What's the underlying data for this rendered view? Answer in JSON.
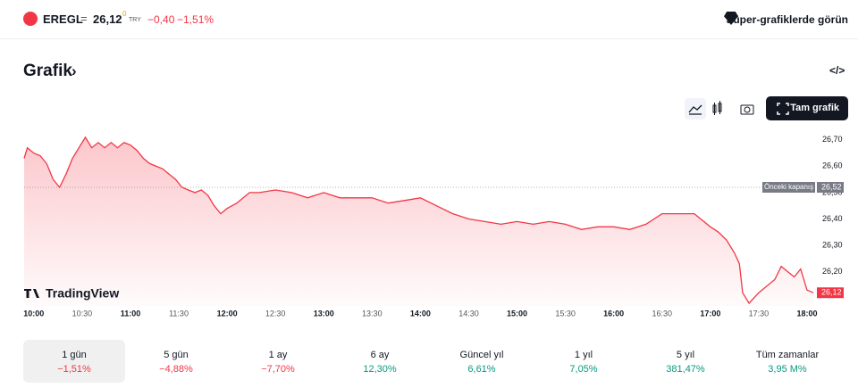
{
  "header": {
    "symbol": "EREGL",
    "price": "26,12",
    "price_fraction": "0",
    "currency": "TRY",
    "change": "−0,40",
    "change_pct": "−1,51%",
    "cta": "Süper-grafiklerde görün"
  },
  "section_title": "Grafik",
  "toolbar": {
    "full_chart": "Tam grafik"
  },
  "chart_data": {
    "type": "line",
    "color": "#f23645",
    "watermark": "TradingView",
    "x": [
      "09:54",
      "09:56",
      "10:00",
      "10:04",
      "10:08",
      "10:12",
      "10:16",
      "10:20",
      "10:24",
      "10:28",
      "10:32",
      "10:36",
      "10:40",
      "10:44",
      "10:48",
      "10:52",
      "10:56",
      "11:00",
      "11:04",
      "11:08",
      "11:12",
      "11:16",
      "11:20",
      "11:24",
      "11:28",
      "11:32",
      "11:36",
      "11:40",
      "11:44",
      "11:48",
      "11:52",
      "11:56",
      "12:00",
      "12:06",
      "12:10",
      "12:14",
      "12:20",
      "12:30",
      "12:40",
      "12:50",
      "13:00",
      "13:10",
      "13:20",
      "13:30",
      "13:40",
      "13:50",
      "14:00",
      "14:10",
      "14:20",
      "14:30",
      "14:40",
      "14:50",
      "15:00",
      "15:10",
      "15:20",
      "15:30",
      "15:40",
      "15:50",
      "16:00",
      "16:10",
      "16:20",
      "16:30",
      "16:40",
      "16:50",
      "17:00",
      "17:05",
      "17:10",
      "17:15",
      "17:18",
      "17:20",
      "17:24",
      "17:30",
      "17:36",
      "17:40",
      "17:44",
      "17:48",
      "17:52",
      "17:56",
      "18:00",
      "18:04"
    ],
    "values": [
      26.63,
      26.67,
      26.65,
      26.64,
      26.61,
      26.55,
      26.52,
      26.57,
      26.63,
      26.67,
      26.71,
      26.67,
      26.69,
      26.67,
      26.69,
      26.67,
      26.69,
      26.68,
      26.66,
      26.63,
      26.61,
      26.6,
      26.59,
      26.57,
      26.55,
      26.52,
      26.51,
      26.5,
      26.51,
      26.49,
      26.45,
      26.42,
      26.44,
      26.46,
      26.48,
      26.5,
      26.5,
      26.51,
      26.5,
      26.48,
      26.5,
      26.48,
      26.48,
      26.48,
      26.46,
      26.47,
      26.48,
      26.45,
      26.42,
      26.4,
      26.39,
      26.38,
      26.39,
      26.38,
      26.39,
      26.38,
      26.36,
      26.37,
      26.37,
      26.36,
      26.38,
      26.42,
      26.42,
      26.42,
      26.37,
      26.35,
      26.32,
      26.27,
      26.23,
      26.12,
      26.08,
      26.12,
      26.15,
      26.17,
      26.22,
      26.2,
      26.18,
      26.21,
      26.13,
      26.12
    ],
    "xlim": [
      "09:54",
      "18:05"
    ],
    "xticks": [
      "10:00",
      "10:30",
      "11:00",
      "11:30",
      "12:00",
      "12:30",
      "13:00",
      "13:30",
      "14:00",
      "14:30",
      "15:00",
      "15:30",
      "16:00",
      "16:30",
      "17:00",
      "17:30",
      "18:00"
    ],
    "ylim": [
      26.07,
      26.74
    ],
    "yticks": [
      {
        "value": 26.7,
        "label": "26,70"
      },
      {
        "value": 26.6,
        "label": "26,60"
      },
      {
        "value": 26.5,
        "label": "26,50"
      },
      {
        "value": 26.4,
        "label": "26,40"
      },
      {
        "value": 26.3,
        "label": "26,30"
      },
      {
        "value": 26.2,
        "label": "26,20"
      }
    ],
    "previous_close": {
      "label": "Önceki kapanış",
      "value": 26.52,
      "value_label": "26,52"
    },
    "last_price_label": "26,12"
  },
  "periods": [
    {
      "label": "1 gün",
      "change": "−1,51%"
    },
    {
      "label": "5 gün",
      "change": "−4,88%"
    },
    {
      "label": "1 ay",
      "change": "−7,70%"
    },
    {
      "label": "6 ay",
      "change": "12,30%"
    },
    {
      "label": "Güncel yıl",
      "change": "6,61%"
    },
    {
      "label": "1 yıl",
      "change": "7,05%"
    },
    {
      "label": "5 yıl",
      "change": "381,47%"
    },
    {
      "label": "Tüm zamanlar",
      "change": "3,95 M%"
    }
  ]
}
